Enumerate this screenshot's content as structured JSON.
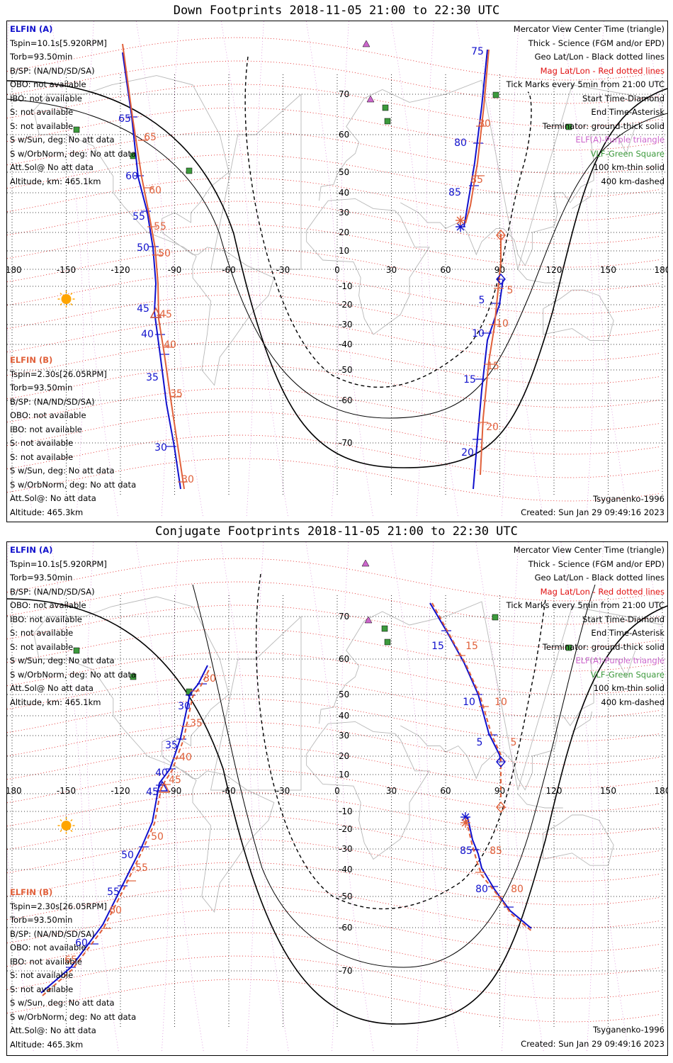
{
  "panels": [
    {
      "title": "Down Footprints 2018-11-05 21:00 to 22:30 UTC",
      "left_a": [
        "ELFIN (A)",
        "Tspin=10.1s[5.920RPM]",
        "Torb=93.50min",
        "B/SP: (NA/ND/SD/SA)",
        "OBO: not available",
        "IBO: not available",
        "S: not available",
        "S: not available",
        "S w/Sun, deg: No att data",
        "S w/OrbNorm, deg: No att data",
        "Att.Sol@ No att data",
        "Altitude, km: 465.1km"
      ],
      "left_b": [
        "ELFIN (B)",
        "Tspin=2.30s[26.05RPM]",
        "Torb=93.50min",
        "B/SP: (NA/ND/SD/SA)",
        "OBO: not available",
        "IBO: not available",
        "S: not available",
        "S: not available",
        "S w/Sun, deg: No att data",
        "S w/OrbNorm, deg: No att data",
        "Att.Sol@: No att data",
        "Altitude: 465.3km"
      ],
      "legend": [
        "Mercator View Center Time (triangle)",
        "Thick - Science (FGM and/or EPD)",
        "Geo Lat/Lon - Black dotted lines",
        "Mag Lat/Lon - Red dotted lines",
        "Tick Marks every 5min from 21:00 UTC",
        "Start Time-Diamond",
        "End Time-Asterisk",
        "Terminator: ground-thick solid",
        "ELF(A)-Purple triangle",
        "VLF-Green Square",
        "100 km-thin solid",
        "400 km-dashed"
      ],
      "model": "Tsyganenko-1996",
      "created": "Created: Sun Jan 29 09:49:16 2023",
      "lon_ticks": [
        "-180",
        "-150",
        "-120",
        "-90",
        "-60",
        "-30",
        "0",
        "30",
        "60",
        "90",
        "120",
        "150",
        "180"
      ],
      "lat_ticks": [
        "70",
        "60",
        "50",
        "40",
        "30",
        "20",
        "10",
        "-10",
        "-20",
        "-30",
        "-40",
        "-50",
        "-60",
        "-70"
      ],
      "track_a_labels": [
        {
          "t": "65",
          "color": "blue"
        },
        {
          "t": "60",
          "color": "blue"
        },
        {
          "t": "55",
          "color": "blue"
        },
        {
          "t": "50",
          "color": "blue"
        },
        {
          "t": "45",
          "color": "blue"
        },
        {
          "t": "40",
          "color": "blue"
        },
        {
          "t": "35",
          "color": "blue"
        },
        {
          "t": "30",
          "color": "blue"
        },
        {
          "t": "65",
          "color": "red"
        },
        {
          "t": "60",
          "color": "red"
        },
        {
          "t": "55",
          "color": "red"
        },
        {
          "t": "50",
          "color": "red"
        },
        {
          "t": "45",
          "color": "red"
        },
        {
          "t": "40",
          "color": "red"
        },
        {
          "t": "35",
          "color": "red"
        },
        {
          "t": "30",
          "color": "red"
        }
      ],
      "track_b_labels": [
        {
          "t": "75",
          "color": "blue"
        },
        {
          "t": "80",
          "color": "blue"
        },
        {
          "t": "85",
          "color": "blue"
        },
        {
          "t": "5",
          "color": "blue"
        },
        {
          "t": "10",
          "color": "blue"
        },
        {
          "t": "15",
          "color": "blue"
        },
        {
          "t": "20",
          "color": "blue"
        },
        {
          "t": "80",
          "color": "red"
        },
        {
          "t": "85",
          "color": "red"
        },
        {
          "t": "5",
          "color": "red"
        },
        {
          "t": "10",
          "color": "red"
        },
        {
          "t": "15",
          "color": "red"
        },
        {
          "t": "20",
          "color": "red"
        }
      ]
    },
    {
      "title": "Conjugate Footprints 2018-11-05 21:00 to 22:30 UTC",
      "left_a": [
        "ELFIN (A)",
        "Tspin=10.1s[5.920RPM]",
        "Torb=93.50min",
        "B/SP: (NA/ND/SD/SA)",
        "OBO: not available",
        "IBO: not available",
        "S: not available",
        "S: not available",
        "S w/Sun, deg: No att data",
        "S w/OrbNorm, deg: No att data",
        "Att.Sol@ No att data",
        "Altitude, km: 465.1km"
      ],
      "left_b": [
        "ELFIN (B)",
        "Tspin=2.30s[26.05RPM]",
        "Torb=93.50min",
        "B/SP: (NA/ND/SD/SA)",
        "OBO: not available",
        "IBO: not available",
        "S: not available",
        "S: not available",
        "S w/Sun, deg: No att data",
        "S w/OrbNorm, deg: No att data",
        "Att.Sol@: No att data",
        "Altitude: 465.3km"
      ],
      "legend": [
        "Mercator View Center Time (triangle)",
        "Thick - Science (FGM and/or EPD)",
        "Geo Lat/Lon - Black dotted lines",
        "Mag Lat/Lon - Red dotted lines",
        "Tick Marks every 5min from 21:00 UTC",
        "Start Time-Diamond",
        "End Time-Asterisk",
        "Terminator: ground-thick solid",
        "ELF(A)-Purple triangle",
        "VLF-Green Square",
        "100 km-thin solid",
        "400 km-dashed"
      ],
      "model": "Tsyganenko-1996",
      "created": "Created: Sun Jan 29 09:49:16 2023",
      "lon_ticks": [
        "-180",
        "-150",
        "-120",
        "-90",
        "-60",
        "-30",
        "0",
        "30",
        "60",
        "90",
        "120",
        "150",
        "180"
      ],
      "lat_ticks": [
        "70",
        "60",
        "50",
        "40",
        "30",
        "20",
        "10",
        "-10",
        "-20",
        "-30",
        "-40",
        "-50",
        "-60",
        "-70"
      ],
      "track_a_labels": [
        {
          "t": "30",
          "color": "blue"
        },
        {
          "t": "35",
          "color": "blue"
        },
        {
          "t": "40",
          "color": "blue"
        },
        {
          "t": "45",
          "color": "blue"
        },
        {
          "t": "50",
          "color": "blue"
        },
        {
          "t": "55",
          "color": "blue"
        },
        {
          "t": "60",
          "color": "blue"
        },
        {
          "t": "30",
          "color": "red"
        },
        {
          "t": "35",
          "color": "red"
        },
        {
          "t": "40",
          "color": "red"
        },
        {
          "t": "45",
          "color": "red"
        },
        {
          "t": "50",
          "color": "red"
        },
        {
          "t": "55",
          "color": "red"
        },
        {
          "t": "60",
          "color": "red"
        },
        {
          "t": "65",
          "color": "red"
        }
      ],
      "track_b_labels": [
        {
          "t": "15",
          "color": "blue"
        },
        {
          "t": "10",
          "color": "blue"
        },
        {
          "t": "5",
          "color": "blue"
        },
        {
          "t": "85",
          "color": "blue"
        },
        {
          "t": "80",
          "color": "blue"
        },
        {
          "t": "15",
          "color": "red"
        },
        {
          "t": "10",
          "color": "red"
        },
        {
          "t": "5",
          "color": "red"
        },
        {
          "t": "85",
          "color": "red"
        },
        {
          "t": "80",
          "color": "red"
        }
      ]
    }
  ],
  "colors": {
    "elfin_a": "#1010cc",
    "elfin_b": "#e0603a",
    "mag_grid": "#e01010",
    "geo_grid": "#000000",
    "elf": "#cc66cc",
    "vlf": "#3c9a3c",
    "sun": "#ffa500",
    "coast": "#b8b8b8"
  }
}
